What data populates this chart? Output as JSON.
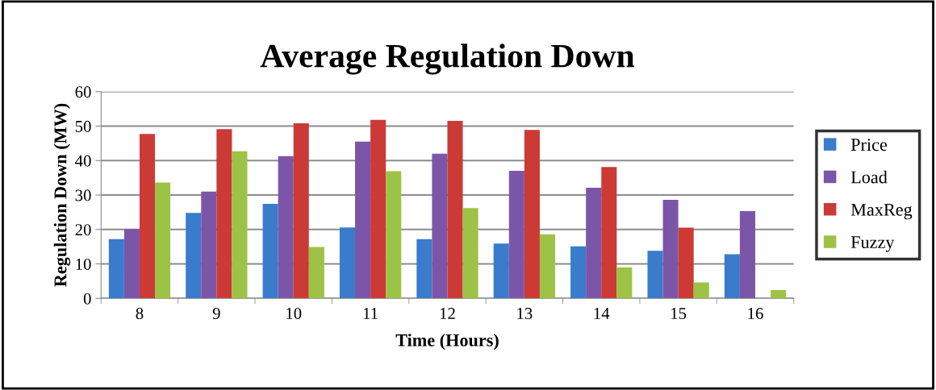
{
  "chart_data": {
    "type": "bar",
    "title": "Average Regulation Down",
    "xlabel": "Time (Hours)",
    "ylabel": "Regulation Down (MW)",
    "categories": [
      "8",
      "9",
      "10",
      "11",
      "12",
      "13",
      "14",
      "15",
      "16"
    ],
    "series": [
      {
        "name": "Price",
        "color": "#3a7bcc",
        "values": [
          17.2,
          24.8,
          27.4,
          20.6,
          17.2,
          15.9,
          15.1,
          13.8,
          12.8
        ]
      },
      {
        "name": "Load",
        "color": "#7b56a8",
        "values": [
          20.1,
          31,
          41.3,
          45.5,
          42,
          37,
          32.1,
          28.6,
          25.3
        ]
      },
      {
        "name": "MaxReg",
        "color": "#cc3a36",
        "values": [
          47.7,
          49.1,
          50.8,
          51.8,
          51.5,
          48.9,
          38.1,
          20.5,
          null
        ]
      },
      {
        "name": "Fuzzy",
        "color": "#9dc346",
        "values": [
          33.6,
          42.7,
          14.9,
          36.9,
          26.2,
          18.6,
          9.0,
          4.6,
          2.4
        ]
      }
    ],
    "ylim": [
      0,
      60
    ],
    "yticks": [
      0,
      10,
      20,
      30,
      40,
      50,
      60
    ],
    "grid": "y",
    "legend": "right"
  }
}
